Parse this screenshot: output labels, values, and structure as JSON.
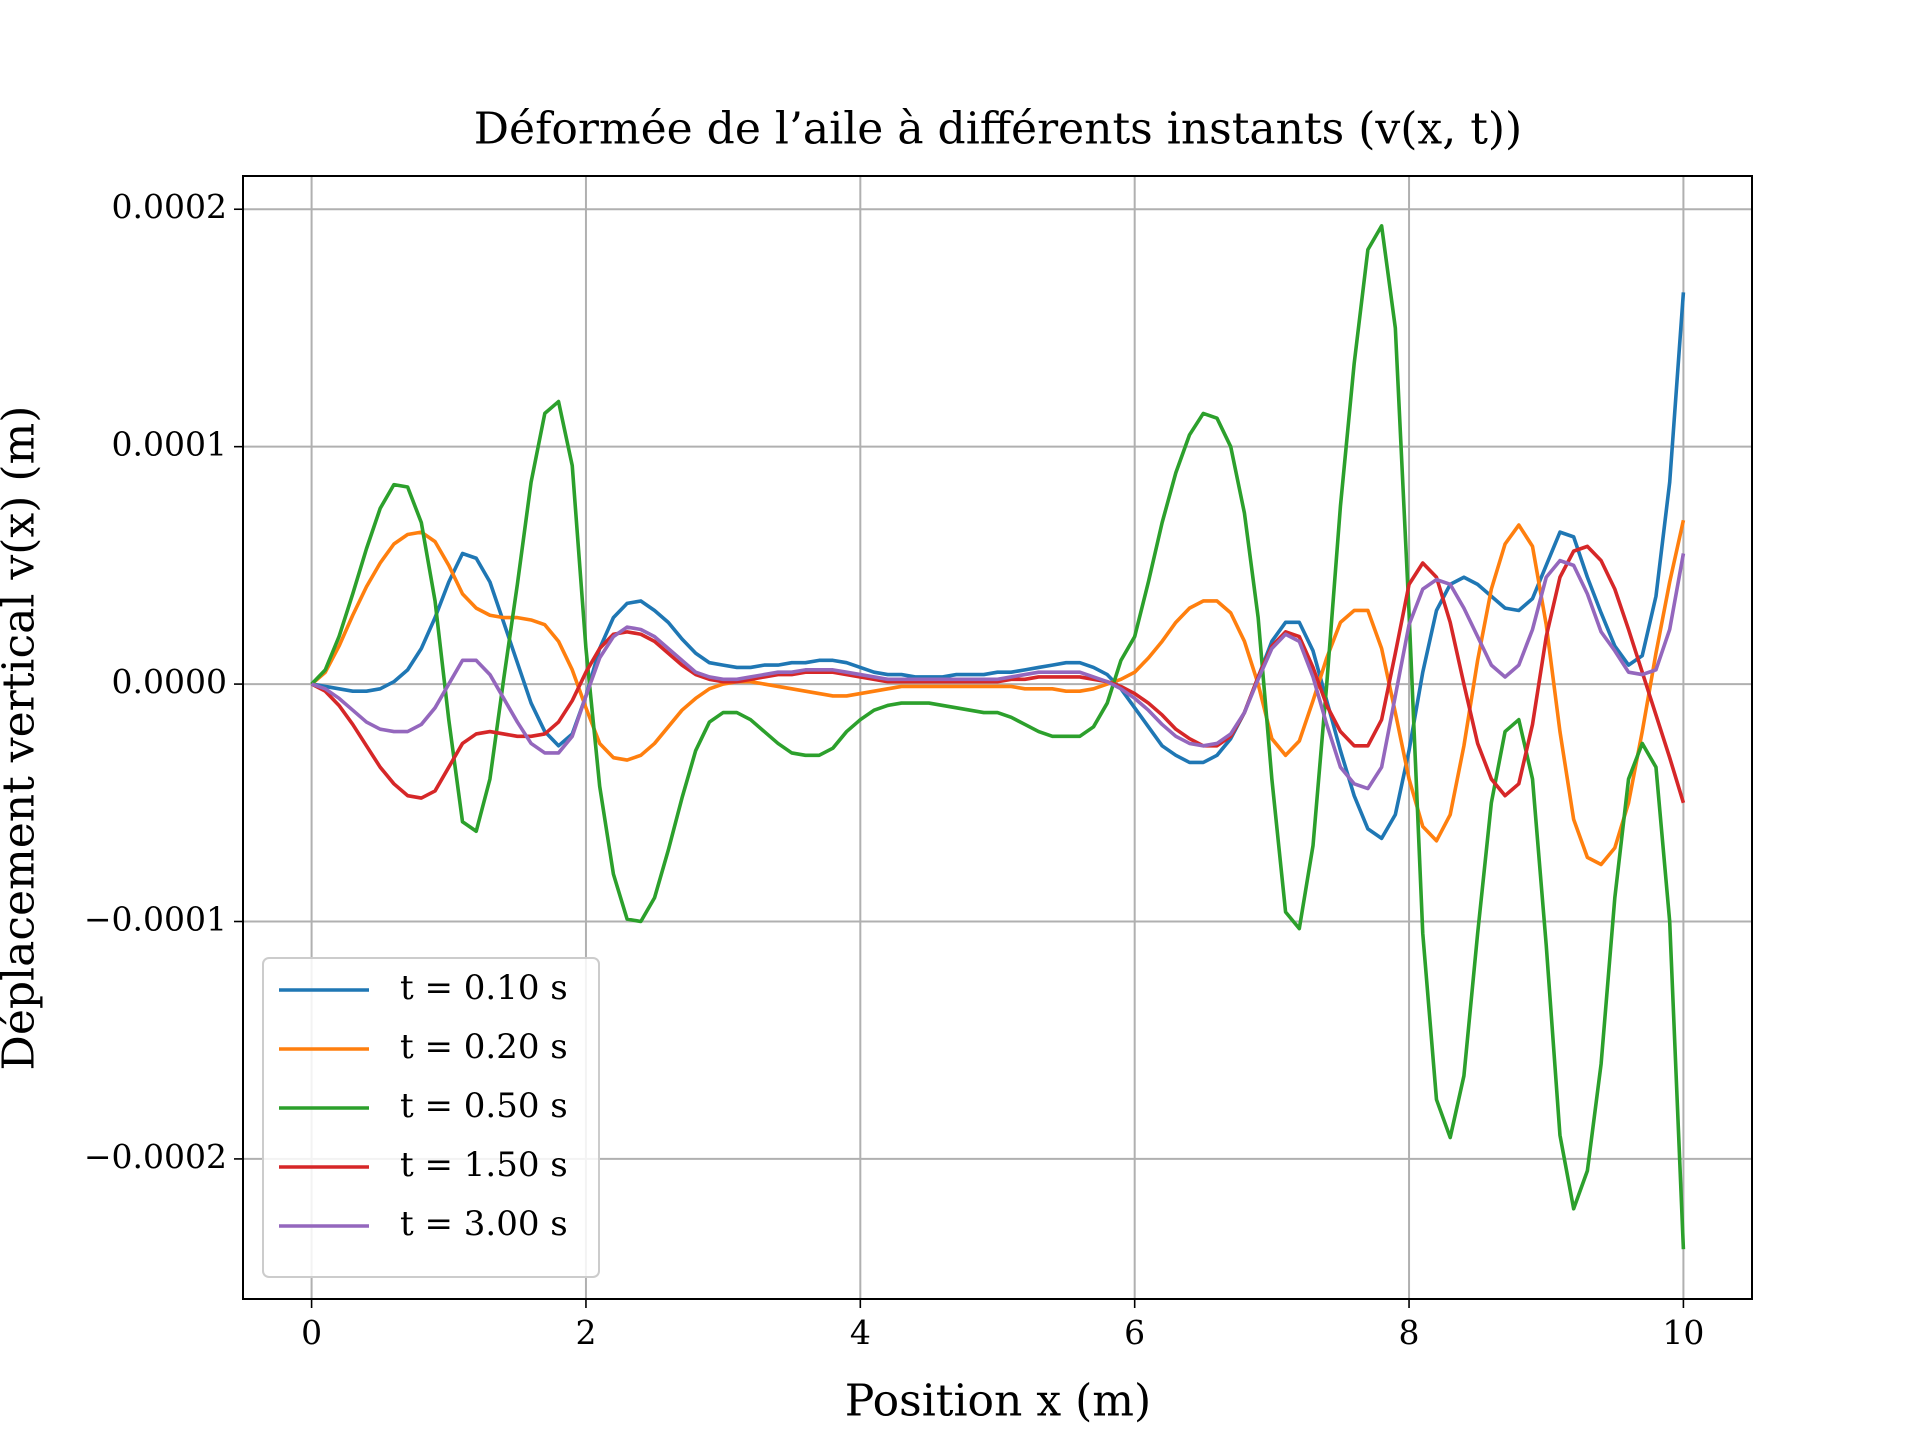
{
  "chart_data": {
    "type": "line",
    "title": "Déformée de l’aile à différents instants (v(x, t))",
    "x_label": "Position x (m)",
    "y_label": "Déplacement vertical v(x) (m)",
    "xlim": [
      -0.5,
      10.5
    ],
    "ylim": [
      -0.000259,
      0.000214
    ],
    "xticks": [
      0,
      2,
      4,
      6,
      8,
      10
    ],
    "yticks": [
      {
        "value": -0.0002,
        "label": "−0.0002"
      },
      {
        "value": -0.0001,
        "label": "−0.0001"
      },
      {
        "value": 0,
        "label": "0.0000"
      },
      {
        "value": 0.0001,
        "label": "0.0001"
      },
      {
        "value": 0.0002,
        "label": "0.0002"
      }
    ],
    "grid": true,
    "legend": "lower left",
    "x": [
      0,
      0.1,
      0.2,
      0.3,
      0.4,
      0.5,
      0.6,
      0.7,
      0.8,
      0.9,
      1,
      1.1,
      1.2,
      1.3,
      1.4,
      1.5,
      1.6,
      1.7,
      1.8,
      1.9,
      2,
      2.1,
      2.2,
      2.3,
      2.4,
      2.5,
      2.6,
      2.7,
      2.8,
      2.9,
      3,
      3.1,
      3.2,
      3.3,
      3.4,
      3.5,
      3.6,
      3.7,
      3.8,
      3.9,
      4,
      4.1,
      4.2,
      4.3,
      4.4,
      4.5,
      4.6,
      4.7,
      4.8,
      4.9,
      5,
      5.1,
      5.2,
      5.3,
      5.4,
      5.5,
      5.6,
      5.7,
      5.8,
      5.9,
      6,
      6.1,
      6.2,
      6.3,
      6.4,
      6.5,
      6.6,
      6.7,
      6.8,
      6.9,
      7,
      7.1,
      7.2,
      7.3,
      7.4,
      7.5,
      7.6,
      7.7,
      7.8,
      7.9,
      8,
      8.1,
      8.2,
      8.3,
      8.4,
      8.5,
      8.6,
      8.7,
      8.8,
      8.9,
      9,
      9.1,
      9.2,
      9.3,
      9.4,
      9.5,
      9.6,
      9.7,
      9.8,
      9.9,
      10
    ],
    "series": [
      {
        "name": "t = 0.10 s",
        "color": "#1f77b4",
        "values": [
          0,
          -1e-06,
          -2e-06,
          -3e-06,
          -3e-06,
          -2e-06,
          1e-06,
          6e-06,
          1.5e-05,
          2.8e-05,
          4.3e-05,
          5.5e-05,
          5.3e-05,
          4.3e-05,
          2.6e-05,
          9e-06,
          -8e-06,
          -2e-05,
          -2.6e-05,
          -2.1e-05,
          -5e-06,
          1.5e-05,
          2.8e-05,
          3.4e-05,
          3.5e-05,
          3.1e-05,
          2.6e-05,
          1.9e-05,
          1.3e-05,
          9e-06,
          8e-06,
          7e-06,
          7e-06,
          8e-06,
          8e-06,
          9e-06,
          9e-06,
          1e-05,
          1e-05,
          9e-06,
          7e-06,
          5e-06,
          4e-06,
          4e-06,
          3e-06,
          3e-06,
          3e-06,
          4e-06,
          4e-06,
          4e-06,
          5e-06,
          5e-06,
          6e-06,
          7e-06,
          8e-06,
          9e-06,
          9e-06,
          7e-06,
          4e-06,
          -2e-06,
          -1e-05,
          -1.8e-05,
          -2.6e-05,
          -3e-05,
          -3.3e-05,
          -3.3e-05,
          -3e-05,
          -2.3e-05,
          -1.2e-05,
          3e-06,
          1.8e-05,
          2.6e-05,
          2.6e-05,
          1.4e-05,
          -7e-06,
          -2.8e-05,
          -4.7e-05,
          -6.1e-05,
          -6.5e-05,
          -5.5e-05,
          -2.8e-05,
          5e-06,
          3.1e-05,
          4.2e-05,
          4.5e-05,
          4.2e-05,
          3.7e-05,
          3.2e-05,
          3.1e-05,
          3.6e-05,
          5e-05,
          6.4e-05,
          6.2e-05,
          4.5e-05,
          3e-05,
          1.6e-05,
          8e-06,
          1.2e-05,
          3.7e-05,
          8.5e-05,
          0.000165
        ]
      },
      {
        "name": "t = 0.20 s",
        "color": "#ff7f0e",
        "values": [
          0,
          5e-06,
          1.6e-05,
          2.9e-05,
          4.1e-05,
          5.1e-05,
          5.9e-05,
          6.3e-05,
          6.4e-05,
          6e-05,
          5e-05,
          3.8e-05,
          3.2e-05,
          2.9e-05,
          2.8e-05,
          2.8e-05,
          2.7e-05,
          2.5e-05,
          1.8e-05,
          6e-06,
          -1e-05,
          -2.5e-05,
          -3.1e-05,
          -3.2e-05,
          -3e-05,
          -2.5e-05,
          -1.8e-05,
          -1.1e-05,
          -6e-06,
          -2e-06,
          0,
          1e-06,
          1e-06,
          0,
          -1e-06,
          -2e-06,
          -3e-06,
          -4e-06,
          -5e-06,
          -5e-06,
          -4e-06,
          -3e-06,
          -2e-06,
          -1e-06,
          -1e-06,
          -1e-06,
          -1e-06,
          -1e-06,
          -1e-06,
          -1e-06,
          -1e-06,
          -1e-06,
          -2e-06,
          -2e-06,
          -2e-06,
          -3e-06,
          -3e-06,
          -2e-06,
          0,
          2e-06,
          5e-06,
          1.1e-05,
          1.8e-05,
          2.6e-05,
          3.2e-05,
          3.5e-05,
          3.5e-05,
          3e-05,
          1.8e-05,
          0,
          -2.3e-05,
          -3e-05,
          -2.4e-05,
          -7e-06,
          1.1e-05,
          2.6e-05,
          3.1e-05,
          3.1e-05,
          1.5e-05,
          -1.2e-05,
          -4e-05,
          -6e-05,
          -6.6e-05,
          -5.5e-05,
          -2.6e-05,
          1e-05,
          4e-05,
          5.9e-05,
          6.7e-05,
          5.8e-05,
          2.5e-05,
          -2e-05,
          -5.7e-05,
          -7.3e-05,
          -7.6e-05,
          -6.9e-05,
          -5e-05,
          -2e-05,
          1.3e-05,
          4.3e-05,
          6.9e-05
        ]
      },
      {
        "name": "t = 0.50 s",
        "color": "#2ca02c",
        "values": [
          0,
          6e-06,
          2e-05,
          3.8e-05,
          5.7e-05,
          7.4e-05,
          8.4e-05,
          8.3e-05,
          6.8e-05,
          3.5e-05,
          -1.5e-05,
          -5.8e-05,
          -6.2e-05,
          -4e-05,
          2e-06,
          4.2e-05,
          8.5e-05,
          0.000114,
          0.000119,
          9.2e-05,
          1.5e-05,
          -4.3e-05,
          -8e-05,
          -9.9e-05,
          -0.0001,
          -9e-05,
          -7e-05,
          -4.8e-05,
          -2.8e-05,
          -1.6e-05,
          -1.2e-05,
          -1.2e-05,
          -1.5e-05,
          -2e-05,
          -2.5e-05,
          -2.9e-05,
          -3e-05,
          -3e-05,
          -2.7e-05,
          -2e-05,
          -1.5e-05,
          -1.1e-05,
          -9e-06,
          -8e-06,
          -8e-06,
          -8e-06,
          -9e-06,
          -1e-05,
          -1.1e-05,
          -1.2e-05,
          -1.2e-05,
          -1.4e-05,
          -1.7e-05,
          -2e-05,
          -2.2e-05,
          -2.2e-05,
          -2.2e-05,
          -1.8e-05,
          -8e-06,
          1e-05,
          2e-05,
          4.3e-05,
          6.8e-05,
          8.9e-05,
          0.000105,
          0.000114,
          0.000112,
          0.0001,
          7.2e-05,
          2.8e-05,
          -4e-05,
          -9.6e-05,
          -0.000103,
          -6.8e-05,
          0,
          7.5e-05,
          0.000135,
          0.000183,
          0.000193,
          0.00015,
          3e-05,
          -0.000105,
          -0.000175,
          -0.000191,
          -0.000165,
          -0.000105,
          -5e-05,
          -2e-05,
          -1.5e-05,
          -4e-05,
          -0.00011,
          -0.00019,
          -0.000221,
          -0.000205,
          -0.00016,
          -9e-05,
          -4e-05,
          -2.5e-05,
          -3.5e-05,
          -0.0001,
          -0.000238
        ]
      },
      {
        "name": "t = 1.50 s",
        "color": "#d62728",
        "values": [
          0,
          -3e-06,
          -9e-06,
          -1.7e-05,
          -2.6e-05,
          -3.5e-05,
          -4.2e-05,
          -4.7e-05,
          -4.8e-05,
          -4.5e-05,
          -3.5e-05,
          -2.5e-05,
          -2.1e-05,
          -2e-05,
          -2.1e-05,
          -2.2e-05,
          -2.2e-05,
          -2.1e-05,
          -1.6e-05,
          -7e-06,
          5e-06,
          1.5e-05,
          2.1e-05,
          2.2e-05,
          2.1e-05,
          1.8e-05,
          1.3e-05,
          8e-06,
          4e-06,
          2e-06,
          1e-06,
          1e-06,
          2e-06,
          3e-06,
          4e-06,
          4e-06,
          5e-06,
          5e-06,
          5e-06,
          4e-06,
          3e-06,
          2e-06,
          1e-06,
          1e-06,
          1e-06,
          1e-06,
          1e-06,
          1e-06,
          1e-06,
          1e-06,
          1e-06,
          2e-06,
          2e-06,
          3e-06,
          3e-06,
          3e-06,
          3e-06,
          2e-06,
          1e-06,
          -1e-06,
          -4e-06,
          -8e-06,
          -1.3e-05,
          -1.9e-05,
          -2.3e-05,
          -2.6e-05,
          -2.6e-05,
          -2.2e-05,
          -1.2e-05,
          3e-06,
          1.6e-05,
          2.2e-05,
          2e-05,
          7e-06,
          -9e-06,
          -2e-05,
          -2.6e-05,
          -2.6e-05,
          -1.5e-05,
          1.3e-05,
          4.2e-05,
          5.1e-05,
          4.5e-05,
          2.6e-05,
          0,
          -2.5e-05,
          -4e-05,
          -4.7e-05,
          -4.2e-05,
          -1.7e-05,
          2e-05,
          4.5e-05,
          5.6e-05,
          5.8e-05,
          5.2e-05,
          4e-05,
          2.3e-05,
          5e-06,
          -1.3e-05,
          -3.1e-05,
          -5e-05
        ]
      },
      {
        "name": "t = 3.00 s",
        "color": "#9467bd",
        "values": [
          0,
          -2e-06,
          -6e-06,
          -1.1e-05,
          -1.6e-05,
          -1.9e-05,
          -2e-05,
          -2e-05,
          -1.7e-05,
          -1e-05,
          0,
          1e-05,
          1e-05,
          4e-06,
          -6e-06,
          -1.6e-05,
          -2.5e-05,
          -2.9e-05,
          -2.9e-05,
          -2.2e-05,
          -5e-06,
          1.1e-05,
          2e-05,
          2.4e-05,
          2.3e-05,
          2e-05,
          1.5e-05,
          1e-05,
          5e-06,
          3e-06,
          2e-06,
          2e-06,
          3e-06,
          4e-06,
          5e-06,
          5e-06,
          6e-06,
          6e-06,
          6e-06,
          5e-06,
          4e-06,
          3e-06,
          2e-06,
          2e-06,
          2e-06,
          2e-06,
          2e-06,
          2e-06,
          2e-06,
          2e-06,
          2e-06,
          3e-06,
          4e-06,
          5e-06,
          5e-06,
          5e-06,
          5e-06,
          3e-06,
          1e-06,
          -2e-06,
          -6e-06,
          -1.1e-05,
          -1.7e-05,
          -2.2e-05,
          -2.5e-05,
          -2.6e-05,
          -2.5e-05,
          -2.1e-05,
          -1.2e-05,
          2e-06,
          1.5e-05,
          2.1e-05,
          1.8e-05,
          3e-06,
          -1.7e-05,
          -3.5e-05,
          -4.2e-05,
          -4.4e-05,
          -3.5e-05,
          -5e-06,
          2.5e-05,
          4e-05,
          4.4e-05,
          4.2e-05,
          3.2e-05,
          2e-05,
          8e-06,
          3e-06,
          8e-06,
          2.3e-05,
          4.5e-05,
          5.2e-05,
          5e-05,
          3.8e-05,
          2.2e-05,
          1.4e-05,
          5e-06,
          4e-06,
          6e-06,
          2.3e-05,
          5.5e-05
        ]
      }
    ]
  }
}
